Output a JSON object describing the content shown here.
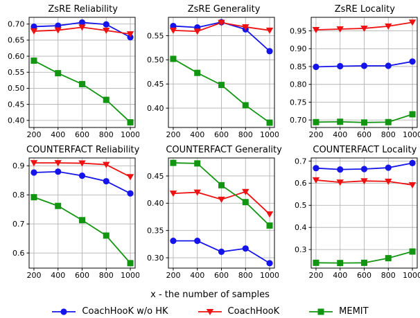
{
  "figure": {
    "xlabel": "x - the number of samples"
  },
  "style": {
    "background": "#ffffff",
    "grid_color": "#b3b3b3",
    "axis_color": "#000000",
    "blue": "#1414eb",
    "red": "#ee1111",
    "green": "#129612"
  },
  "legend": {
    "items": [
      {
        "label": "CoachHooK w/o HK",
        "color": "#1414eb",
        "marker": "circle"
      },
      {
        "label": "CoachHooK",
        "color": "#ee1111",
        "marker": "triangle-down"
      },
      {
        "label": "MEMIT",
        "color": "#129612",
        "marker": "square"
      }
    ]
  },
  "chart_data": [
    {
      "type": "line",
      "title": "ZsRE Reliability",
      "x": [
        200,
        400,
        600,
        800,
        1000
      ],
      "xtick_labels": [
        "200",
        "400",
        "600",
        "800",
        "1000"
      ],
      "xlim": [
        160,
        1040
      ],
      "ylim": [
        0.378,
        0.721
      ],
      "yticks": [
        0.4,
        0.45,
        0.5,
        0.55,
        0.6,
        0.65,
        0.7
      ],
      "ytick_labels": [
        "0.40",
        "0.45",
        "0.50",
        "0.55",
        "0.60",
        "0.65",
        "0.70"
      ],
      "grid": true,
      "legend_position": "none",
      "series": [
        {
          "name": "CoachHooK w/o HK",
          "marker": "circle",
          "color": "#1414eb",
          "values": [
            0.692,
            0.695,
            0.705,
            0.699,
            0.659
          ]
        },
        {
          "name": "CoachHooK",
          "marker": "triangle-down",
          "color": "#ee1111",
          "values": [
            0.678,
            0.681,
            0.69,
            0.68,
            0.669
          ]
        },
        {
          "name": "MEMIT",
          "marker": "square",
          "color": "#129612",
          "values": [
            0.586,
            0.547,
            0.513,
            0.464,
            0.394
          ]
        }
      ]
    },
    {
      "type": "line",
      "title": "ZsRE Generality",
      "x": [
        200,
        400,
        600,
        800,
        1000
      ],
      "xtick_labels": [
        "200",
        "400",
        "600",
        "800",
        "1000"
      ],
      "xlim": [
        160,
        1040
      ],
      "ylim": [
        0.36,
        0.588
      ],
      "yticks": [
        0.4,
        0.45,
        0.5,
        0.55
      ],
      "ytick_labels": [
        "0.40",
        "0.45",
        "0.50",
        "0.55"
      ],
      "grid": true,
      "legend_position": "none",
      "series": [
        {
          "name": "CoachHooK w/o HK",
          "marker": "circle",
          "color": "#1414eb",
          "values": [
            0.57,
            0.567,
            0.578,
            0.563,
            0.518
          ]
        },
        {
          "name": "CoachHooK",
          "marker": "triangle-down",
          "color": "#ee1111",
          "values": [
            0.561,
            0.559,
            0.577,
            0.568,
            0.561
          ]
        },
        {
          "name": "MEMIT",
          "marker": "square",
          "color": "#129612",
          "values": [
            0.502,
            0.473,
            0.448,
            0.406,
            0.37
          ]
        }
      ]
    },
    {
      "type": "line",
      "title": "ZsRE Locality",
      "x": [
        200,
        400,
        600,
        800,
        1000
      ],
      "xtick_labels": [
        "200",
        "400",
        "600",
        "800",
        "1000"
      ],
      "xlim": [
        160,
        1040
      ],
      "ylim": [
        0.679,
        0.988
      ],
      "yticks": [
        0.7,
        0.75,
        0.8,
        0.85,
        0.9,
        0.95
      ],
      "ytick_labels": [
        "0.70",
        "0.75",
        "0.80",
        "0.85",
        "0.90",
        "0.95"
      ],
      "grid": true,
      "legend_position": "none",
      "series": [
        {
          "name": "CoachHooK w/o HK",
          "marker": "circle",
          "color": "#1414eb",
          "values": [
            0.849,
            0.851,
            0.852,
            0.852,
            0.864
          ]
        },
        {
          "name": "CoachHooK",
          "marker": "triangle-down",
          "color": "#ee1111",
          "values": [
            0.953,
            0.955,
            0.957,
            0.963,
            0.974
          ]
        },
        {
          "name": "MEMIT",
          "marker": "square",
          "color": "#129612",
          "values": [
            0.694,
            0.695,
            0.693,
            0.694,
            0.716
          ]
        }
      ]
    },
    {
      "type": "line",
      "title": "COUNTERFACT Reliability",
      "x": [
        200,
        400,
        600,
        800,
        1000
      ],
      "xtick_labels": [
        "200",
        "400",
        "600",
        "800",
        "1000"
      ],
      "xlim": [
        160,
        1040
      ],
      "ylim": [
        0.548,
        0.927
      ],
      "yticks": [
        0.6,
        0.7,
        0.8,
        0.9
      ],
      "ytick_labels": [
        "0.6",
        "0.7",
        "0.8",
        "0.9"
      ],
      "grid": true,
      "legend_position": "none",
      "series": [
        {
          "name": "CoachHooK w/o HK",
          "marker": "circle",
          "color": "#1414eb",
          "values": [
            0.877,
            0.88,
            0.866,
            0.847,
            0.805
          ]
        },
        {
          "name": "CoachHooK",
          "marker": "triangle-down",
          "color": "#ee1111",
          "values": [
            0.91,
            0.91,
            0.909,
            0.904,
            0.862
          ]
        },
        {
          "name": "MEMIT",
          "marker": "square",
          "color": "#129612",
          "values": [
            0.792,
            0.762,
            0.713,
            0.66,
            0.565
          ]
        }
      ]
    },
    {
      "type": "line",
      "title": "COUNTERFACT Generality",
      "x": [
        200,
        400,
        600,
        800,
        1000
      ],
      "xtick_labels": [
        "200",
        "400",
        "600",
        "800",
        "1000"
      ],
      "xlim": [
        160,
        1040
      ],
      "ylim": [
        0.281,
        0.483
      ],
      "yticks": [
        0.3,
        0.35,
        0.4,
        0.45
      ],
      "ytick_labels": [
        "0.30",
        "0.35",
        "0.40",
        "0.45"
      ],
      "grid": true,
      "legend_position": "none",
      "series": [
        {
          "name": "CoachHooK w/o HK",
          "marker": "circle",
          "color": "#1414eb",
          "values": [
            0.331,
            0.331,
            0.311,
            0.317,
            0.29
          ]
        },
        {
          "name": "CoachHooK",
          "marker": "triangle-down",
          "color": "#ee1111",
          "values": [
            0.418,
            0.42,
            0.407,
            0.421,
            0.38
          ]
        },
        {
          "name": "MEMIT",
          "marker": "square",
          "color": "#129612",
          "values": [
            0.474,
            0.473,
            0.433,
            0.402,
            0.359
          ]
        }
      ]
    },
    {
      "type": "line",
      "title": "COUNTERFACT Locality",
      "x": [
        200,
        400,
        600,
        800,
        1000
      ],
      "xtick_labels": [
        "200",
        "400",
        "600",
        "800",
        "1000"
      ],
      "xlim": [
        160,
        1040
      ],
      "ylim": [
        0.216,
        0.714
      ],
      "yticks": [
        0.3,
        0.4,
        0.5,
        0.6,
        0.7
      ],
      "ytick_labels": [
        "0.3",
        "0.4",
        "0.5",
        "0.6",
        "0.7"
      ],
      "grid": true,
      "legend_position": "none",
      "series": [
        {
          "name": "CoachHooK w/o HK",
          "marker": "circle",
          "color": "#1414eb",
          "values": [
            0.668,
            0.662,
            0.664,
            0.67,
            0.691
          ]
        },
        {
          "name": "CoachHooK",
          "marker": "triangle-down",
          "color": "#ee1111",
          "values": [
            0.614,
            0.604,
            0.61,
            0.608,
            0.592
          ]
        },
        {
          "name": "MEMIT",
          "marker": "square",
          "color": "#129612",
          "values": [
            0.24,
            0.239,
            0.24,
            0.261,
            0.291
          ]
        }
      ]
    }
  ]
}
